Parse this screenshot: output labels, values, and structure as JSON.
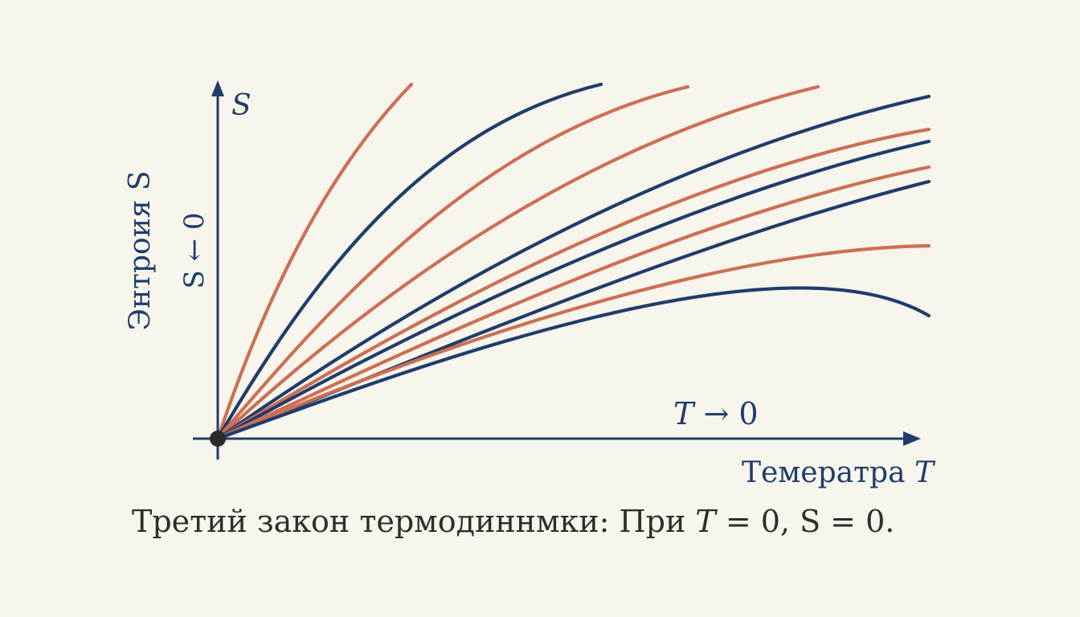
{
  "diagram": {
    "y_axis_symbol": "S",
    "y_axis_label": "Энтроия S",
    "y_axis_sublabel": "S ← 0",
    "x_axis_label_text": "Темератра ",
    "x_axis_label_var": "T",
    "limit_label_var": "T",
    "limit_label_rest": " → 0",
    "caption_text": "Третий закон термодиннмки: При ",
    "caption_var": "T",
    "caption_rest": " = 0, S = 0.",
    "colors": {
      "navy": "#1f3d6b",
      "orange": "#cc6f55",
      "background": "#f7f5ec",
      "caption": "#2e2e2e",
      "origin_dot": "#2b2b2b"
    },
    "curves": [
      {
        "color": "orange"
      },
      {
        "color": "navy"
      },
      {
        "color": "orange"
      },
      {
        "color": "orange"
      },
      {
        "color": "navy"
      },
      {
        "color": "orange"
      },
      {
        "color": "navy"
      },
      {
        "color": "orange"
      },
      {
        "color": "navy"
      },
      {
        "color": "orange"
      },
      {
        "color": "navy"
      }
    ]
  }
}
